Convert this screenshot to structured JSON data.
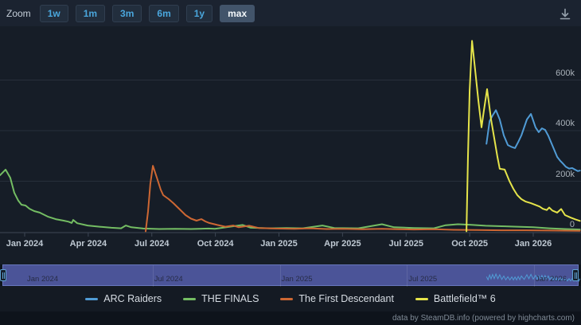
{
  "toolbar": {
    "zoom_label": "Zoom",
    "buttons": [
      {
        "label": "1w",
        "selected": false
      },
      {
        "label": "1m",
        "selected": false
      },
      {
        "label": "3m",
        "selected": false
      },
      {
        "label": "6m",
        "selected": false
      },
      {
        "label": "1y",
        "selected": false
      },
      {
        "label": "max",
        "selected": true
      }
    ]
  },
  "icons": {
    "top_right": "download-icon"
  },
  "footer": {
    "credit": "data by SteamDB.info (powered by highcharts.com)"
  },
  "chart_data": {
    "type": "line",
    "title": "",
    "ylabel": "",
    "xlabel": "",
    "x_unit": "months since Jan 2024",
    "ylim": [
      0,
      760000
    ],
    "xlim": [
      -1.16,
      26.2
    ],
    "grid": "horizontal",
    "legend_position": "bottom",
    "y_ticks": [
      {
        "v": 0,
        "label": "0"
      },
      {
        "v": 200000,
        "label": "200k"
      },
      {
        "v": 400000,
        "label": "400k"
      },
      {
        "v": 600000,
        "label": "600k"
      }
    ],
    "x_ticks": [
      {
        "m": 0,
        "label": "Jan 2024"
      },
      {
        "m": 3,
        "label": "Apr 2024"
      },
      {
        "m": 6,
        "label": "Jul 2024"
      },
      {
        "m": 9,
        "label": "Oct 2024"
      },
      {
        "m": 12,
        "label": "Jan 2025"
      },
      {
        "m": 15,
        "label": "Apr 2025"
      },
      {
        "m": 18,
        "label": "Jul 2025"
      },
      {
        "m": 21,
        "label": "Oct 2025"
      },
      {
        "m": 24,
        "label": "Jan 2026"
      }
    ],
    "navigator": {
      "range_selected": "max",
      "mini_series": "ARC Raiders",
      "labels": [
        {
          "m": 0,
          "label": "Jan 2024"
        },
        {
          "m": 6,
          "label": "Jul 2024"
        },
        {
          "m": 12,
          "label": "Jan 2025"
        },
        {
          "m": 18,
          "label": "Jul 2025"
        },
        {
          "m": 24,
          "label": "Jan 2026"
        }
      ]
    },
    "series": [
      {
        "name": "ARC Raiders",
        "color": "#509bd5",
        "points": [
          [
            21.79,
            348000
          ],
          [
            21.94,
            438000
          ],
          [
            22.08,
            460000
          ],
          [
            22.24,
            481000
          ],
          [
            22.42,
            444000
          ],
          [
            22.61,
            381000
          ],
          [
            22.8,
            343000
          ],
          [
            22.99,
            335000
          ],
          [
            23.14,
            331000
          ],
          [
            23.29,
            355000
          ],
          [
            23.44,
            381000
          ],
          [
            23.7,
            444000
          ],
          [
            23.89,
            466000
          ],
          [
            24.11,
            413000
          ],
          [
            24.26,
            394000
          ],
          [
            24.41,
            409000
          ],
          [
            24.56,
            403000
          ],
          [
            24.71,
            380000
          ],
          [
            24.86,
            350000
          ],
          [
            25.01,
            320000
          ],
          [
            25.13,
            296000
          ],
          [
            25.28,
            280000
          ],
          [
            25.39,
            271000
          ],
          [
            25.54,
            257000
          ],
          [
            25.69,
            250000
          ],
          [
            25.84,
            252000
          ],
          [
            25.99,
            245000
          ],
          [
            26.1,
            240000
          ],
          [
            26.2,
            242000
          ]
        ]
      },
      {
        "name": "THE FINALS",
        "color": "#74bd63",
        "points": [
          [
            -1.16,
            224000
          ],
          [
            -0.9,
            246000
          ],
          [
            -0.68,
            214000
          ],
          [
            -0.49,
            154000
          ],
          [
            -0.3,
            123000
          ],
          [
            -0.15,
            107000
          ],
          [
            0.04,
            104000
          ],
          [
            0.23,
            91000
          ],
          [
            0.45,
            82000
          ],
          [
            0.71,
            76000
          ],
          [
            1.09,
            60000
          ],
          [
            1.46,
            50000
          ],
          [
            1.84,
            44000
          ],
          [
            2.07,
            40000
          ],
          [
            2.22,
            35000
          ],
          [
            2.29,
            47000
          ],
          [
            2.48,
            34000
          ],
          [
            2.97,
            25000
          ],
          [
            3.53,
            20000
          ],
          [
            4.09,
            16000
          ],
          [
            4.55,
            14000
          ],
          [
            4.77,
            25000
          ],
          [
            5.03,
            18000
          ],
          [
            5.6,
            13000
          ],
          [
            6.35,
            11000
          ],
          [
            7.1,
            12000
          ],
          [
            7.85,
            11000
          ],
          [
            8.68,
            13000
          ],
          [
            8.98,
            12000
          ],
          [
            10.29,
            27000
          ],
          [
            10.67,
            16000
          ],
          [
            11.61,
            14000
          ],
          [
            12.36,
            15000
          ],
          [
            13.11,
            14000
          ],
          [
            14.05,
            25000
          ],
          [
            14.61,
            15000
          ],
          [
            15.74,
            14000
          ],
          [
            16.86,
            30000
          ],
          [
            17.43,
            18000
          ],
          [
            18.37,
            15000
          ],
          [
            19.31,
            14000
          ],
          [
            19.87,
            26000
          ],
          [
            20.44,
            30000
          ],
          [
            21.0,
            28000
          ],
          [
            21.75,
            24000
          ],
          [
            22.5,
            22000
          ],
          [
            23.25,
            20000
          ],
          [
            24.0,
            18000
          ],
          [
            24.75,
            14000
          ],
          [
            25.5,
            11000
          ],
          [
            26.2,
            9000
          ]
        ]
      },
      {
        "name": "The First Descendant",
        "color": "#cd6733",
        "points": [
          [
            5.71,
            2000
          ],
          [
            5.82,
            80000
          ],
          [
            5.93,
            190000
          ],
          [
            6.05,
            261000
          ],
          [
            6.24,
            214000
          ],
          [
            6.42,
            167000
          ],
          [
            6.54,
            145000
          ],
          [
            6.8,
            129000
          ],
          [
            7.02,
            113000
          ],
          [
            7.29,
            91000
          ],
          [
            7.59,
            66000
          ],
          [
            7.85,
            52000
          ],
          [
            8.11,
            44000
          ],
          [
            8.34,
            50000
          ],
          [
            8.53,
            41000
          ],
          [
            8.71,
            35000
          ],
          [
            9.09,
            27000
          ],
          [
            9.47,
            20000
          ],
          [
            9.84,
            25000
          ],
          [
            10.1,
            18000
          ],
          [
            10.59,
            24000
          ],
          [
            11.04,
            15000
          ],
          [
            11.8,
            13000
          ],
          [
            12.73,
            12000
          ],
          [
            13.49,
            14000
          ],
          [
            14.24,
            11000
          ],
          [
            14.99,
            12000
          ],
          [
            15.93,
            10000
          ],
          [
            16.86,
            12000
          ],
          [
            17.62,
            10000
          ],
          [
            18.37,
            9000
          ],
          [
            19.31,
            10000
          ],
          [
            20.25,
            8000
          ],
          [
            21.37,
            7000
          ],
          [
            22.5,
            6000
          ],
          [
            23.63,
            6000
          ],
          [
            24.75,
            5000
          ],
          [
            26.2,
            4000
          ]
        ]
      },
      {
        "name": "Battlefield™ 6",
        "color": "#e5e44a",
        "points": [
          [
            20.85,
            2000
          ],
          [
            20.92,
            300000
          ],
          [
            21.0,
            560000
          ],
          [
            21.11,
            755000
          ],
          [
            21.26,
            640000
          ],
          [
            21.41,
            520000
          ],
          [
            21.56,
            413000
          ],
          [
            21.67,
            480000
          ],
          [
            21.82,
            564000
          ],
          [
            22.01,
            444000
          ],
          [
            22.2,
            350000
          ],
          [
            22.31,
            296000
          ],
          [
            22.42,
            249000
          ],
          [
            22.65,
            246000
          ],
          [
            22.87,
            202000
          ],
          [
            23.06,
            170000
          ],
          [
            23.25,
            145000
          ],
          [
            23.44,
            129000
          ],
          [
            23.63,
            120000
          ],
          [
            23.89,
            113000
          ],
          [
            24.11,
            106000
          ],
          [
            24.3,
            100000
          ],
          [
            24.45,
            91000
          ],
          [
            24.64,
            86000
          ],
          [
            24.75,
            96000
          ],
          [
            24.9,
            84000
          ],
          [
            25.13,
            76000
          ],
          [
            25.32,
            90000
          ],
          [
            25.5,
            66000
          ],
          [
            25.77,
            56000
          ],
          [
            25.99,
            49000
          ],
          [
            26.2,
            43000
          ]
        ]
      }
    ]
  }
}
